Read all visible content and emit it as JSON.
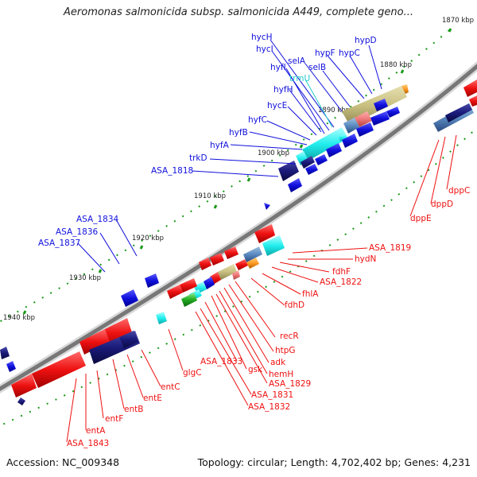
{
  "title": "Aeromonas salmonicida subsp. salmonicida A449, complete geno...",
  "footer": {
    "accession": "Accession: NC_009348",
    "info": "Topology: circular; Length: 4,702,402 bp; Genes: 4,231"
  },
  "ticks": [
    "1870 kbp",
    "1880 kbp",
    "1890 kbp",
    "1900 kbp",
    "1910 kbp",
    "1920 kbp",
    "1930 kbp",
    "1940 kbp"
  ],
  "genes_upper": [
    "hycH",
    "hycI",
    "selA",
    "hypF",
    "hypD",
    "hyfI",
    "hypC",
    "selB",
    "trmU",
    "hyfH",
    "hycE",
    "hyfC",
    "hyfB",
    "hyfA",
    "trkD",
    "ASA_1818",
    "ASA_1834",
    "ASA_1836",
    "ASA_1837"
  ],
  "genes_lower": [
    "ASA_1819",
    "hydN",
    "fdhF",
    "ASA_1822",
    "fhlA",
    "fdhD",
    "recR",
    "htpG",
    "adk",
    "gsk",
    "hemH",
    "ASA_1829",
    "ASA_1833",
    "ASA_1831",
    "ASA_1832",
    "glgC",
    "entC",
    "entE",
    "entB",
    "entF",
    "entA",
    "ASA_1843",
    "dppC",
    "dppD",
    "dppE"
  ],
  "colors": {
    "forward_blue": "#1010dd",
    "reverse_red": "#ee1111",
    "cyan": "#22eeee",
    "navy": "#1a1a7a",
    "backbone": "#888888",
    "tick_green": "#1a9a1a"
  }
}
